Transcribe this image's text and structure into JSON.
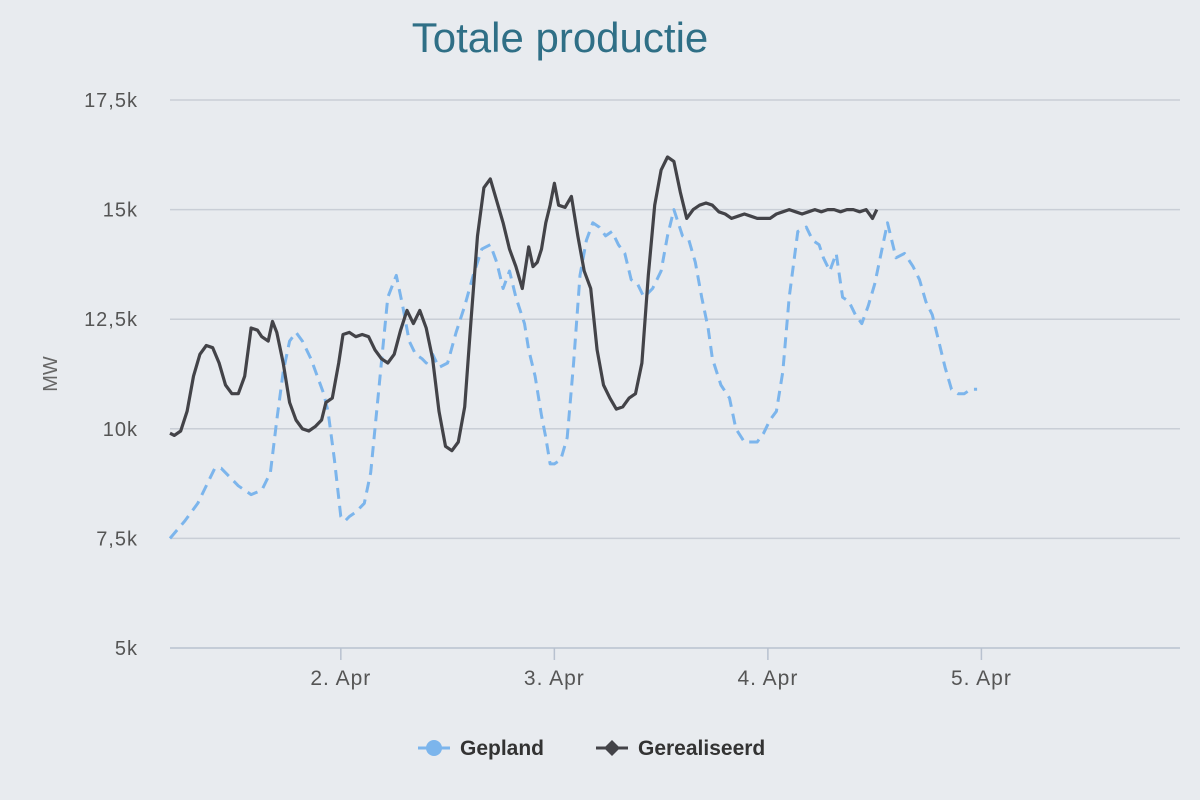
{
  "chart_data": {
    "type": "line",
    "title": "Totale productie",
    "ylabel": "MW",
    "xlabel": "",
    "ylim": [
      5000,
      17500
    ],
    "yticks": [
      {
        "value": 5000,
        "label": "5k"
      },
      {
        "value": 7500,
        "label": "7,5k"
      },
      {
        "value": 10000,
        "label": "10k"
      },
      {
        "value": 12500,
        "label": "12,5k"
      },
      {
        "value": 15000,
        "label": "15k"
      },
      {
        "value": 17500,
        "label": "17,5k"
      }
    ],
    "xlim": [
      1.2,
      5.93
    ],
    "xticks": [
      {
        "value": 2,
        "label": "2. Apr"
      },
      {
        "value": 3,
        "label": "3. Apr"
      },
      {
        "value": 4,
        "label": "4. Apr"
      },
      {
        "value": 5,
        "label": "5. Apr"
      }
    ],
    "legend_position": "bottom-center",
    "grid": true,
    "series": [
      {
        "name": "Gepland",
        "color": "#7cb5ec",
        "dash": true,
        "marker": "circle",
        "x": [
          1.2,
          1.27,
          1.33,
          1.38,
          1.41,
          1.44,
          1.52,
          1.58,
          1.63,
          1.67,
          1.7,
          1.73,
          1.76,
          1.79,
          1.82,
          1.86,
          1.89,
          1.92,
          1.94,
          1.97,
          2.0,
          2.02,
          2.04,
          2.07,
          2.11,
          2.14,
          2.17,
          2.2,
          2.22,
          2.26,
          2.29,
          2.32,
          2.35,
          2.38,
          2.4,
          2.43,
          2.46,
          2.5,
          2.54,
          2.58,
          2.62,
          2.66,
          2.7,
          2.73,
          2.76,
          2.79,
          2.82,
          2.86,
          2.88,
          2.91,
          2.94,
          2.96,
          2.98,
          3.0,
          3.03,
          3.06,
          3.09,
          3.12,
          3.15,
          3.18,
          3.21,
          3.24,
          3.27,
          3.3,
          3.33,
          3.36,
          3.39,
          3.42,
          3.46,
          3.5,
          3.53,
          3.56,
          3.6,
          3.63,
          3.66,
          3.69,
          3.72,
          3.74,
          3.78,
          3.82,
          3.85,
          3.89,
          3.92,
          3.95,
          3.98,
          4.01,
          4.04,
          4.07,
          4.1,
          4.14,
          4.18,
          4.21,
          4.24,
          4.26,
          4.29,
          4.32,
          4.35,
          4.38,
          4.41,
          4.44,
          4.47,
          4.5,
          4.53,
          4.56,
          4.6,
          4.64,
          4.68,
          4.71,
          4.74,
          4.77,
          4.8,
          4.83,
          4.86,
          4.89,
          4.92,
          4.95,
          4.98
        ],
        "y": [
          7500,
          7900,
          8300,
          8800,
          9100,
          9100,
          8700,
          8500,
          8600,
          9000,
          10200,
          11300,
          12000,
          12200,
          12000,
          11600,
          11200,
          10800,
          10400,
          9300,
          8000,
          7900,
          8000,
          8100,
          8300,
          9000,
          10500,
          12000,
          13000,
          13500,
          12800,
          12000,
          11700,
          11600,
          11500,
          11700,
          11400,
          11500,
          12200,
          12800,
          13500,
          14100,
          14200,
          13800,
          13200,
          13600,
          13000,
          12400,
          11800,
          11200,
          10300,
          9800,
          9200,
          9200,
          9300,
          9800,
          11500,
          13500,
          14300,
          14700,
          14600,
          14400,
          14500,
          14200,
          14000,
          13400,
          13300,
          13000,
          13200,
          13600,
          14400,
          15000,
          14400,
          14300,
          13800,
          13000,
          12300,
          11600,
          11000,
          10700,
          10000,
          9700,
          9700,
          9700,
          9900,
          10200,
          10400,
          11300,
          13000,
          14500,
          14600,
          14300,
          14200,
          13900,
          13600,
          14000,
          13000,
          12900,
          12600,
          12400,
          12800,
          13300,
          14000,
          14700,
          13900,
          14000,
          13700,
          13400,
          12900,
          12600,
          12000,
          11400,
          10900,
          10800,
          10800,
          10900,
          10900
        ]
      },
      {
        "name": "Gerealiseerd",
        "color": "#434348",
        "dash": false,
        "marker": "diamond",
        "x": [
          1.2,
          1.22,
          1.25,
          1.28,
          1.31,
          1.34,
          1.37,
          1.4,
          1.43,
          1.46,
          1.49,
          1.52,
          1.55,
          1.58,
          1.61,
          1.63,
          1.66,
          1.68,
          1.7,
          1.73,
          1.76,
          1.79,
          1.82,
          1.85,
          1.88,
          1.91,
          1.93,
          1.96,
          1.99,
          2.01,
          2.04,
          2.07,
          2.1,
          2.13,
          2.16,
          2.19,
          2.22,
          2.25,
          2.28,
          2.31,
          2.34,
          2.37,
          2.4,
          2.43,
          2.46,
          2.49,
          2.52,
          2.55,
          2.58,
          2.61,
          2.64,
          2.67,
          2.7,
          2.73,
          2.76,
          2.79,
          2.82,
          2.85,
          2.88,
          2.9,
          2.92,
          2.94,
          2.96,
          2.98,
          3.0,
          3.02,
          3.05,
          3.08,
          3.11,
          3.14,
          3.17,
          3.2,
          3.23,
          3.26,
          3.29,
          3.32,
          3.35,
          3.38,
          3.41,
          3.44,
          3.47,
          3.5,
          3.53,
          3.56,
          3.59,
          3.62,
          3.65,
          3.68,
          3.71,
          3.74,
          3.77,
          3.8,
          3.83,
          3.86,
          3.89,
          3.92,
          3.95,
          3.98,
          4.01,
          4.04,
          4.07,
          4.1,
          4.13,
          4.16,
          4.19,
          4.22,
          4.25,
          4.28,
          4.31,
          4.34,
          4.37,
          4.4,
          4.43,
          4.46,
          4.49,
          4.51
        ],
        "y": [
          9900,
          9850,
          9950,
          10400,
          11200,
          11700,
          11900,
          11850,
          11500,
          11000,
          10800,
          10800,
          11200,
          12300,
          12250,
          12100,
          12000,
          12450,
          12200,
          11500,
          10600,
          10200,
          10000,
          9950,
          10050,
          10200,
          10600,
          10700,
          11500,
          12150,
          12200,
          12100,
          12150,
          12100,
          11800,
          11600,
          11500,
          11700,
          12250,
          12700,
          12400,
          12700,
          12300,
          11600,
          10400,
          9600,
          9500,
          9700,
          10500,
          12500,
          14400,
          15500,
          15700,
          15200,
          14700,
          14100,
          13700,
          13200,
          14150,
          13700,
          13800,
          14100,
          14700,
          15100,
          15600,
          15100,
          15050,
          15300,
          14400,
          13600,
          13200,
          11800,
          11000,
          10700,
          10450,
          10500,
          10700,
          10800,
          11500,
          13500,
          15100,
          15900,
          16200,
          16100,
          15400,
          14800,
          15000,
          15100,
          15150,
          15100,
          14950,
          14900,
          14800,
          14850,
          14900,
          14850,
          14800,
          14800,
          14800,
          14900,
          14950,
          15000,
          14950,
          14900,
          14950,
          15000,
          14950,
          15000,
          15000,
          14950,
          15000,
          15000,
          14950,
          15000,
          14800,
          15000
        ]
      }
    ]
  }
}
